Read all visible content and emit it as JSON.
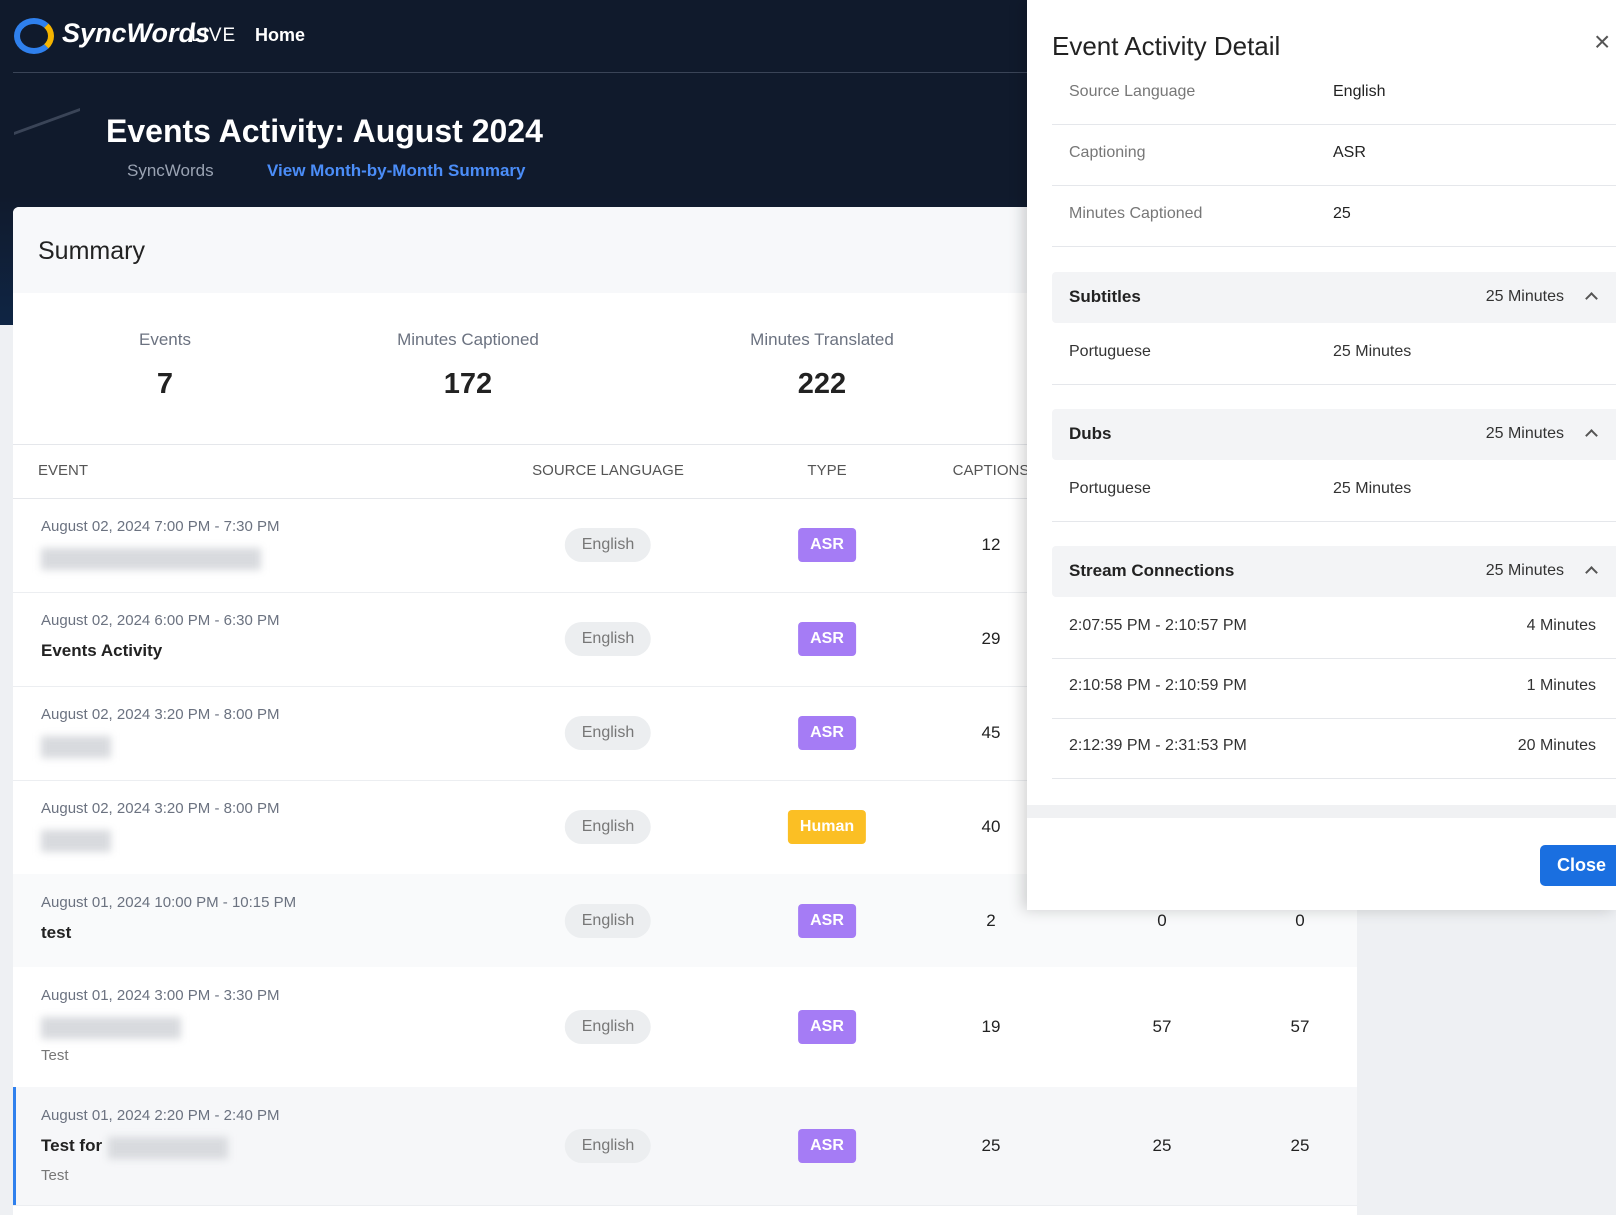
{
  "header": {
    "brand": "SyncWords",
    "brand_suffix": "LIVE",
    "nav": "Home",
    "title": "Events Activity: August 2024",
    "org": "SyncWords",
    "summary_link": "View Month-by-Month Summary"
  },
  "summary": {
    "title": "Summary",
    "stats": [
      {
        "label": "Events",
        "value": "7"
      },
      {
        "label": "Minutes Captioned",
        "value": "172"
      },
      {
        "label": "Minutes Translated",
        "value": "222"
      }
    ]
  },
  "table": {
    "columns": [
      "EVENT",
      "SOURCE LANGUAGE",
      "TYPE",
      "CAPTIONS"
    ],
    "rows": [
      {
        "date": "August 02, 2024 7:00 PM - 7:30 PM",
        "language": "English",
        "type": "ASR",
        "captions": "12"
      },
      {
        "date": "August 02, 2024 6:00 PM - 6:30 PM",
        "name": "Events Activity",
        "language": "English",
        "type": "ASR",
        "captions": "29"
      },
      {
        "date": "August 02, 2024 3:20 PM - 8:00 PM",
        "language": "English",
        "type": "ASR",
        "captions": "45"
      },
      {
        "date": "August 02, 2024 3:20 PM - 8:00 PM",
        "language": "English",
        "type": "Human",
        "captions": "40"
      },
      {
        "date": "August 01, 2024 10:00 PM - 10:15 PM",
        "name": "test",
        "language": "English",
        "type": "ASR",
        "captions": "2",
        "extra": [
          "0",
          "0"
        ]
      },
      {
        "date": "August 01, 2024 3:00 PM - 3:30 PM",
        "note": "Test",
        "language": "English",
        "type": "ASR",
        "captions": "19",
        "extra": [
          "57",
          "57"
        ]
      },
      {
        "date": "August 01, 2024 2:20 PM - 2:40 PM",
        "name": "Test for",
        "note": "Test",
        "language": "English",
        "type": "ASR",
        "captions": "25",
        "extra": [
          "25",
          "25"
        ]
      }
    ]
  },
  "panel": {
    "title": "Event Activity Detail",
    "close_icon": "×",
    "details": [
      {
        "label": "Source Language",
        "value": "English"
      },
      {
        "label": "Captioning",
        "value": "ASR"
      },
      {
        "label": "Minutes Captioned",
        "value": "25"
      }
    ],
    "sections": [
      {
        "title": "Subtitles",
        "total": "25 Minutes",
        "items": [
          {
            "label": "Portuguese",
            "value": "25 Minutes"
          }
        ]
      },
      {
        "title": "Dubs",
        "total": "25 Minutes",
        "items": [
          {
            "label": "Portuguese",
            "value": "25 Minutes"
          }
        ]
      },
      {
        "title": "Stream Connections",
        "total": "25 Minutes",
        "items": [
          {
            "label": "2:07:55 PM - 2:10:57 PM",
            "value": "4 Minutes"
          },
          {
            "label": "2:10:58 PM - 2:10:59 PM",
            "value": "1 Minutes"
          },
          {
            "label": "2:12:39 PM - 2:31:53 PM",
            "value": "20 Minutes"
          }
        ]
      }
    ],
    "close_button": "Close"
  }
}
